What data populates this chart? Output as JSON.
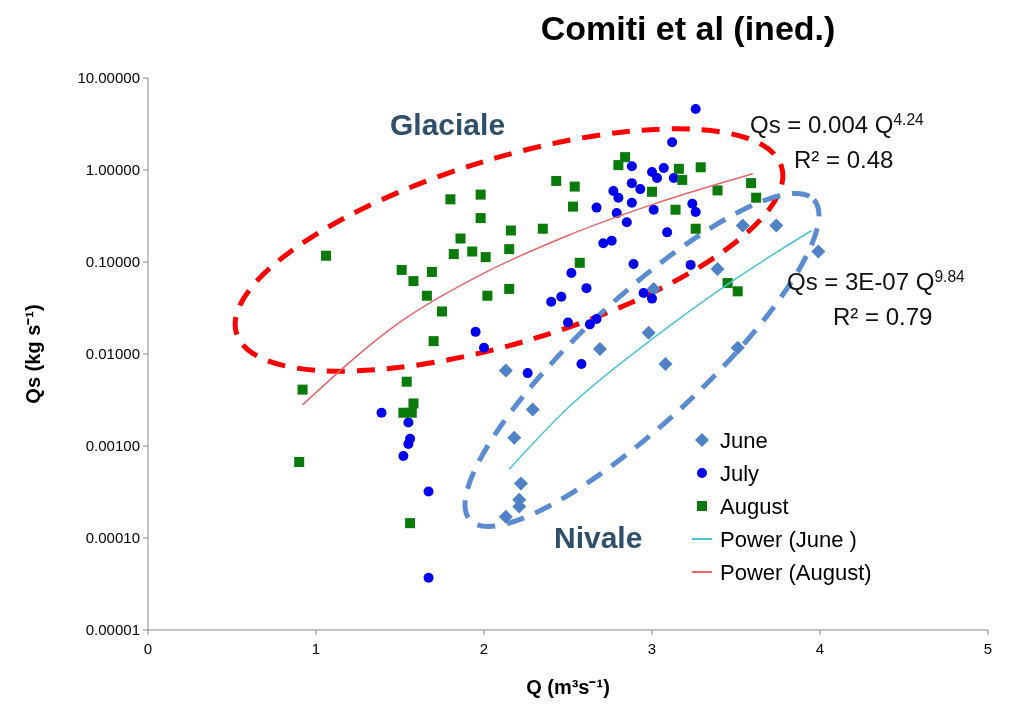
{
  "chart_data": {
    "type": "scatter",
    "title": "Comiti et al (ined.)",
    "xlabel": "Q (m³s⁻¹)",
    "ylabel": "Qs (kg s⁻¹)",
    "log": "y",
    "grid": false,
    "legend": "bottom right",
    "xlim": [
      0,
      5
    ],
    "xticks": [
      0,
      1,
      2,
      3,
      4,
      5
    ],
    "ylim": [
      1e-05,
      10
    ],
    "yticks": [
      {
        "value": 1e-05,
        "label": "0.00001"
      },
      {
        "value": 0.0001,
        "label": "0.00010"
      },
      {
        "value": 0.001,
        "label": "0.00100"
      },
      {
        "value": 0.01,
        "label": "0.01000"
      },
      {
        "value": 0.1,
        "label": "0.10000"
      },
      {
        "value": 1,
        "label": "1.00000"
      },
      {
        "value": 10,
        "label": "10.00000"
      }
    ],
    "annotations": [
      "Glaciale",
      "Nivale",
      "Qs = 0.004 Q$^{4.24}$",
      "R² = 0.48",
      "Qs = 3E-07 Q$^{9.84}$",
      "R² = 0.79"
    ],
    "series": [
      {
        "name": "June",
        "marker": "diamond",
        "color": "#4f81c7",
        "x": [
          2.13,
          2.69,
          2.98,
          3.08,
          3.51,
          2.29,
          2.18,
          2.22,
          2.21,
          2.21,
          2.13,
          3.54,
          3.74,
          3.99,
          3.39,
          3.01
        ],
        "values": [
          0.0066,
          0.0113,
          0.017,
          0.0078,
          0.0117,
          0.0025,
          0.00123,
          0.00039,
          0.00026,
          0.00022,
          0.00017,
          0.25,
          0.25,
          0.13,
          0.084,
          0.051
        ]
      },
      {
        "name": "July",
        "marker": "circle",
        "color": "#0000ee",
        "x": [
          1.95,
          2.0,
          2.26,
          1.39,
          1.55,
          1.56,
          1.55,
          1.52,
          1.67,
          1.67,
          3.26,
          3.24,
          3.26,
          3.23,
          3.12,
          2.88,
          3.0,
          3.03,
          3.07,
          3.13,
          2.88,
          2.93,
          2.77,
          2.8,
          2.88,
          2.67,
          2.79,
          3.01,
          2.85,
          3.09,
          2.76,
          2.71,
          2.89,
          2.52,
          2.61,
          2.46,
          2.4,
          2.95,
          3.0,
          2.5,
          2.63,
          2.67,
          2.58
        ],
        "values": [
          0.0174,
          0.0117,
          0.0062,
          0.0023,
          0.0018,
          0.0012,
          0.00105,
          0.00078,
          0.00032,
          3.7e-05,
          4.6,
          0.43,
          0.35,
          0.093,
          2.0,
          1.1,
          0.95,
          0.82,
          1.05,
          0.82,
          0.72,
          0.62,
          0.59,
          0.5,
          0.44,
          0.39,
          0.34,
          0.37,
          0.27,
          0.21,
          0.17,
          0.16,
          0.095,
          0.076,
          0.052,
          0.042,
          0.037,
          0.046,
          0.04,
          0.022,
          0.021,
          0.024,
          0.0078
        ]
      },
      {
        "name": "August",
        "marker": "square",
        "color": "#0a7a0a",
        "x": [
          1.8,
          1.98,
          1.98,
          1.06,
          1.86,
          1.82,
          1.93,
          2.01,
          2.16,
          2.15,
          1.51,
          1.58,
          1.69,
          1.66,
          1.75,
          2.02,
          2.15,
          1.7,
          0.92,
          1.54,
          1.58,
          1.52,
          1.57,
          0.9,
          1.56,
          3.29,
          3.39,
          3.59,
          3.62,
          3.26,
          3.45,
          3.51,
          2.84,
          2.8,
          2.43,
          2.54,
          2.53,
          3.16,
          3.18,
          3.0,
          3.14,
          2.35,
          2.57
        ],
        "values": [
          0.48,
          0.54,
          0.3,
          0.117,
          0.18,
          0.122,
          0.13,
          0.113,
          0.22,
          0.138,
          0.082,
          0.062,
          0.078,
          0.043,
          0.029,
          0.043,
          0.051,
          0.0138,
          0.0041,
          0.005,
          0.0029,
          0.0023,
          0.0023,
          0.00067,
          0.000145,
          1.07,
          0.6,
          0.72,
          0.5,
          0.23,
          0.059,
          0.048,
          1.38,
          1.13,
          0.76,
          0.66,
          0.4,
          1.03,
          0.78,
          0.58,
          0.37,
          0.23,
          0.098
        ]
      },
      {
        "name": "Power (June )",
        "type": "line",
        "marker": "none",
        "color": "#4cc3d9",
        "x": [
          2.15,
          2.5,
          3.0,
          3.5,
          3.95
        ],
        "values": [
          0.00056,
          0.0026,
          0.0145,
          0.066,
          0.22
        ]
      },
      {
        "name": "Power (August)",
        "type": "line",
        "marker": "none",
        "color": "#e8666a",
        "x": [
          0.92,
          1.5,
          2.0,
          2.5,
          3.0,
          3.6
        ],
        "values": [
          0.0028,
          0.0222,
          0.0756,
          0.194,
          0.42,
          0.91
        ]
      }
    ]
  }
}
